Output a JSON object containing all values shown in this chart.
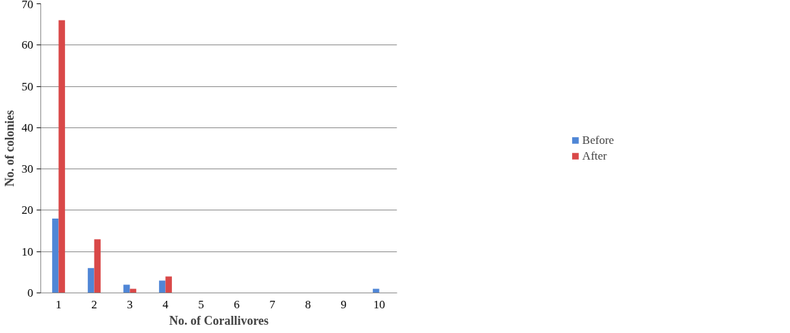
{
  "chart_data": {
    "type": "bar",
    "xlabel": "No. of Corallivores",
    "ylabel": "No. of colonies",
    "categories": [
      "1",
      "2",
      "3",
      "4",
      "5",
      "6",
      "7",
      "8",
      "9",
      "10"
    ],
    "series": [
      {
        "name": "Before",
        "color": "#4f86d6",
        "values": [
          18,
          6,
          2,
          3,
          0,
          0,
          0,
          0,
          0,
          1
        ]
      },
      {
        "name": "After",
        "color": "#d94848",
        "values": [
          66,
          13,
          1,
          4,
          0,
          0,
          0,
          0,
          0,
          0
        ]
      }
    ],
    "ylim": [
      0,
      70
    ],
    "yticks": [
      0,
      10,
      20,
      30,
      40,
      50,
      60,
      70
    ],
    "grid": "y",
    "legend": "right"
  }
}
